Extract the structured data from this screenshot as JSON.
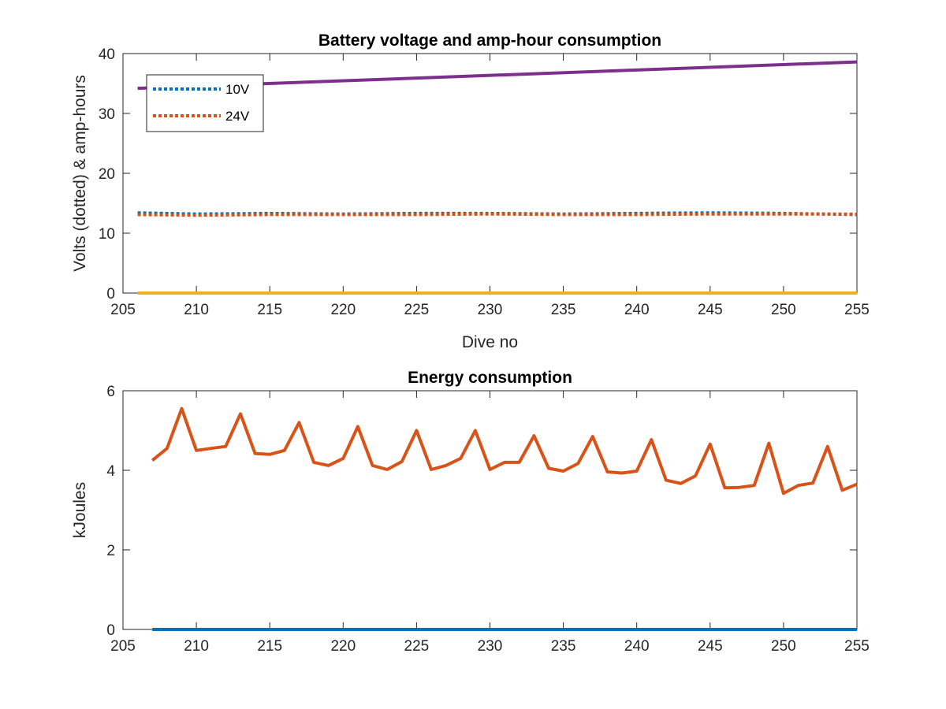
{
  "chart_data": [
    {
      "type": "line",
      "title": "Battery voltage and amp-hour consumption",
      "xlabel": "Dive no",
      "ylabel": "Volts (dotted) & amp-hours",
      "xlim": [
        205,
        255
      ],
      "ylim": [
        0,
        40
      ],
      "xticks": [
        "205",
        "210",
        "215",
        "220",
        "225",
        "230",
        "235",
        "240",
        "245",
        "250",
        "255"
      ],
      "yticks": [
        "0",
        "10",
        "20",
        "30",
        "40"
      ],
      "grid": false,
      "legend": "top-left",
      "series": [
        {
          "name": "10V",
          "style": "dotted",
          "color": "#0072BD",
          "x": [
            206,
            210,
            215,
            220,
            225,
            230,
            235,
            240,
            245,
            250,
            255
          ],
          "y": [
            13.4,
            13.2,
            13.3,
            13.2,
            13.3,
            13.3,
            13.2,
            13.3,
            13.4,
            13.3,
            13.1
          ]
        },
        {
          "name": "24V",
          "style": "dotted",
          "color": "#D95319",
          "x": [
            206,
            210,
            215,
            220,
            225,
            230,
            235,
            240,
            245,
            250,
            255
          ],
          "y": [
            13.1,
            13.0,
            13.1,
            13.1,
            13.1,
            13.2,
            13.1,
            13.1,
            13.2,
            13.2,
            13.2
          ]
        },
        {
          "style": "solid",
          "color": "#EDB120",
          "x": [
            206,
            255
          ],
          "y": [
            0,
            0
          ]
        },
        {
          "style": "solid",
          "color": "#7E2F8E",
          "x": [
            206,
            255
          ],
          "y": [
            34.2,
            38.6
          ]
        }
      ]
    },
    {
      "type": "line",
      "title": "Energy consumption",
      "xlabel": "",
      "ylabel": "kJoules",
      "xlim": [
        205,
        255
      ],
      "ylim": [
        0,
        6
      ],
      "xticks": [
        "205",
        "210",
        "215",
        "220",
        "225",
        "230",
        "235",
        "240",
        "245",
        "250",
        "255"
      ],
      "yticks": [
        "0",
        "2",
        "4",
        "6"
      ],
      "grid": false,
      "series": [
        {
          "style": "solid",
          "color": "#D95319",
          "x": [
            207,
            208,
            209,
            210,
            211,
            212,
            213,
            214,
            215,
            216,
            217,
            218,
            219,
            220,
            221,
            222,
            223,
            224,
            225,
            226,
            227,
            228,
            229,
            230,
            231,
            232,
            233,
            234,
            235,
            236,
            237,
            238,
            239,
            240,
            241,
            242,
            243,
            244,
            245,
            246,
            247,
            248,
            249,
            250,
            251,
            252,
            253,
            254,
            255
          ],
          "y": [
            4.25,
            4.55,
            5.55,
            4.5,
            4.55,
            4.6,
            5.42,
            4.42,
            4.4,
            4.5,
            5.2,
            4.2,
            4.12,
            4.3,
            5.1,
            4.12,
            4.02,
            4.22,
            5.0,
            4.02,
            4.12,
            4.3,
            5.0,
            4.02,
            4.2,
            4.2,
            4.87,
            4.05,
            3.98,
            4.17,
            4.85,
            3.96,
            3.93,
            3.98,
            4.77,
            3.75,
            3.67,
            3.86,
            4.66,
            3.56,
            3.57,
            3.62,
            4.68,
            3.42,
            3.62,
            3.68,
            4.6,
            3.5,
            3.65
          ]
        },
        {
          "style": "solid",
          "color": "#0072BD",
          "x": [
            207,
            255
          ],
          "y": [
            0,
            0
          ]
        }
      ]
    }
  ]
}
